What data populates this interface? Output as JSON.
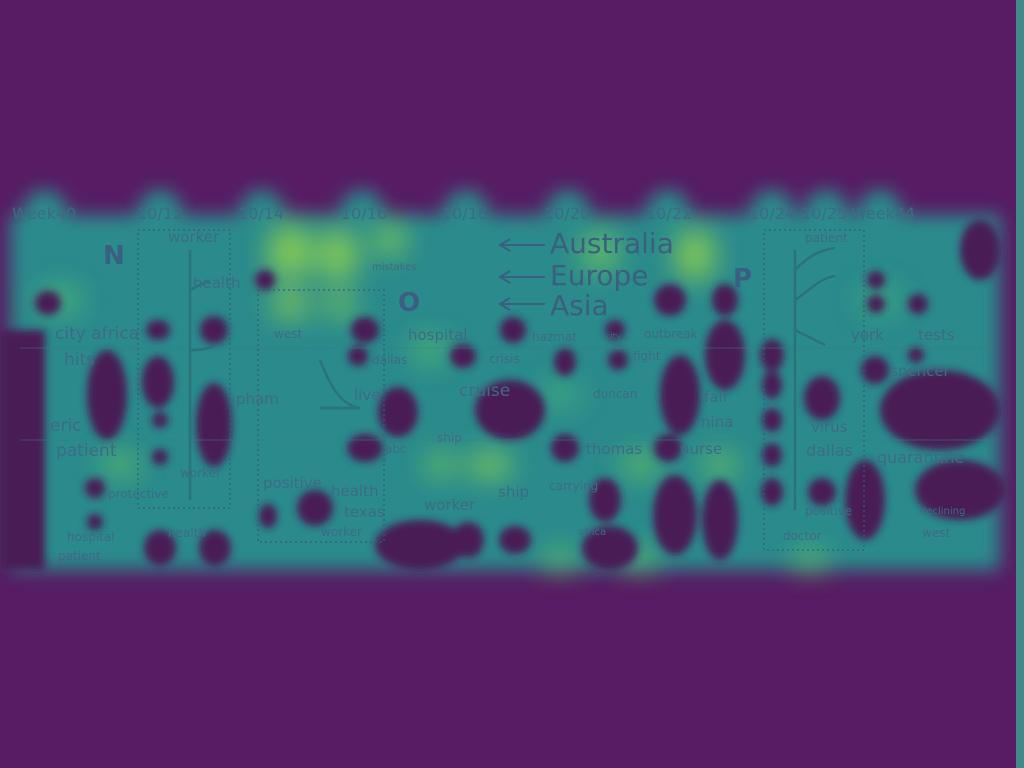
{
  "colors": {
    "background": "#571c63",
    "heat_low": "#2f7f8f",
    "heat_mid": "#2aa789",
    "heat_high": "#9ad24a",
    "blob": "#4a1a57",
    "text": "#3d6b84"
  },
  "timeline": {
    "dates": [
      "Week40",
      "10/12",
      "10/14",
      "10/16",
      "10/18",
      "10/20",
      "10/22",
      "10/24",
      "10/25",
      "Week44"
    ]
  },
  "panels": [
    "N",
    "O",
    "P"
  ],
  "regions": [
    "Australia",
    "Europe",
    "Asia"
  ],
  "keywords": {
    "k01": "worker",
    "k02": "health",
    "k03": "city africa",
    "k04": "hits",
    "k05": "eric",
    "k06": "patient",
    "k07": "protective",
    "k08": "hospital",
    "k09": "patient",
    "k10": "health",
    "k11": "worker",
    "k12": "mistakes",
    "k13": "west",
    "k14": "dallas",
    "k15": "pham",
    "k16": "live",
    "k17": "abc",
    "k18": "positive",
    "k19": "health",
    "k20": "texas",
    "k21": "worker",
    "k22": "hospital",
    "k23": "crisis",
    "k24": "cruise",
    "k25": "ship",
    "k26": "worker",
    "k27": "ship",
    "k28": "hazmat",
    "k29": "city",
    "k30": "outbreak",
    "k31": "fight",
    "k32": "duncan",
    "k33": "fair",
    "k34": "nina",
    "k35": "thomas",
    "k36": "nurse",
    "k37": "carrying",
    "k38": "africa",
    "k39": "patient",
    "k40": "york",
    "k41": "tests",
    "k42": "spencer",
    "k43": "virus",
    "k44": "dallas",
    "k45": "quarantine",
    "k46": "positive",
    "k47": "doctor",
    "k48": "declining",
    "k49": "west"
  }
}
